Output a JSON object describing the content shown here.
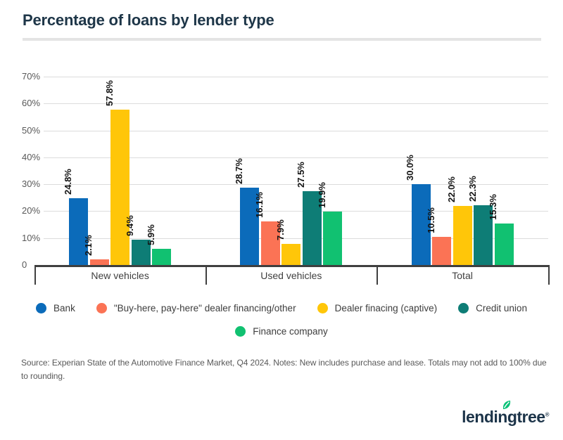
{
  "title": "Percentage of loans by lender type",
  "chart_data": {
    "type": "bar",
    "categories": [
      "New vehicles",
      "Used vehicles",
      "Total"
    ],
    "series": [
      {
        "name": "Bank",
        "color": "#0b6bba",
        "values": [
          24.8,
          28.7,
          30.0
        ]
      },
      {
        "name": "\"Buy-here, pay-here\" dealer financing/other",
        "color": "#fb7355",
        "values": [
          2.1,
          16.1,
          10.5
        ]
      },
      {
        "name": "Dealer finacing (captive)",
        "color": "#ffc609",
        "values": [
          57.8,
          7.9,
          22.0
        ]
      },
      {
        "name": "Credit union",
        "color": "#0e7d76",
        "values": [
          9.4,
          27.5,
          22.3
        ]
      },
      {
        "name": "Finance company",
        "color": "#11c171",
        "values": [
          5.9,
          19.9,
          15.3
        ]
      }
    ],
    "title": "Percentage of loans by lender type",
    "xlabel": "",
    "ylabel": "",
    "ylim": [
      0,
      70
    ],
    "ytick_step": 10,
    "ytick_labels": [
      "0",
      "10%",
      "20%",
      "30%",
      "40%",
      "50%",
      "60%",
      "70%"
    ],
    "data_label_format": "{value}%",
    "data_labels_rotated": true,
    "grid": true,
    "legend_position": "bottom",
    "legend_rows": [
      4,
      1
    ]
  },
  "source_note": "Source: Experian State of the Automotive Finance Market, Q4 2024. Notes: New includes purchase and lease. Totals may not add to 100% due to rounding.",
  "logo": {
    "text": "lendingtree",
    "mark": "®",
    "leaf_color": "#08c177",
    "text_color": "#1c3449"
  },
  "colors": {
    "title_text": "#1e3648",
    "axis_line": "#3f3f3f",
    "gridline": "#dcdcdc",
    "tick_label": "#595959",
    "category_label": "#404040",
    "background": "#ffffff"
  }
}
